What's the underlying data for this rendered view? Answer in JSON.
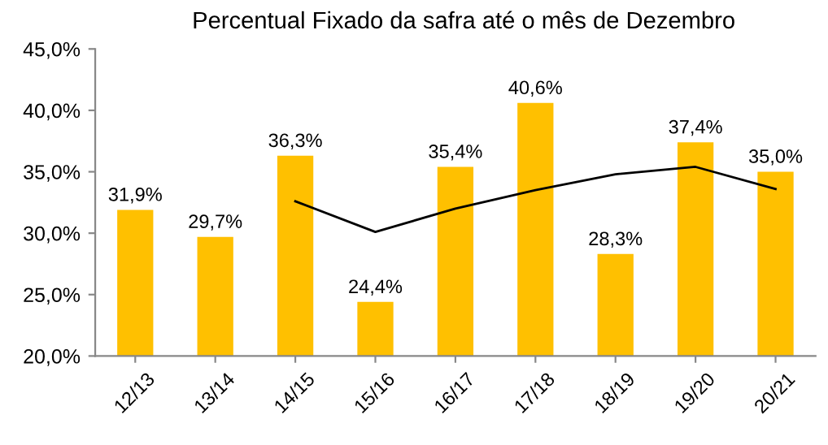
{
  "chart_data": {
    "type": "bar",
    "title": "Percentual Fixado da safra até o mês de Dezembro",
    "categories": [
      "12/13",
      "13/14",
      "14/15",
      "15/16",
      "16/17",
      "17/18",
      "18/19",
      "19/20",
      "20/21"
    ],
    "series": [
      {
        "color": "#ffc000",
        "values": [
          31.9,
          29.7,
          36.3,
          24.4,
          35.4,
          40.6,
          28.3,
          37.4,
          35.0
        ],
        "value_labels": [
          "31,9%",
          "29,7%",
          "36,3%",
          "24,4%",
          "35,4%",
          "40,6%",
          "28,3%",
          "37,4%",
          "35,0%"
        ]
      },
      {
        "type": "line",
        "color": "#000000",
        "values": [
          null,
          null,
          32.6,
          30.1,
          32.0,
          33.5,
          34.8,
          35.4,
          33.6
        ]
      }
    ],
    "ylim": [
      20,
      45
    ],
    "yticks": [
      {
        "value": 20,
        "label": "20,0%"
      },
      {
        "value": 25,
        "label": "25,0%"
      },
      {
        "value": 30,
        "label": "30,0%"
      },
      {
        "value": 35,
        "label": "35,0%"
      },
      {
        "value": 40,
        "label": "40,0%"
      },
      {
        "value": 45,
        "label": "45,0%"
      }
    ],
    "grid": false,
    "legend": false
  }
}
